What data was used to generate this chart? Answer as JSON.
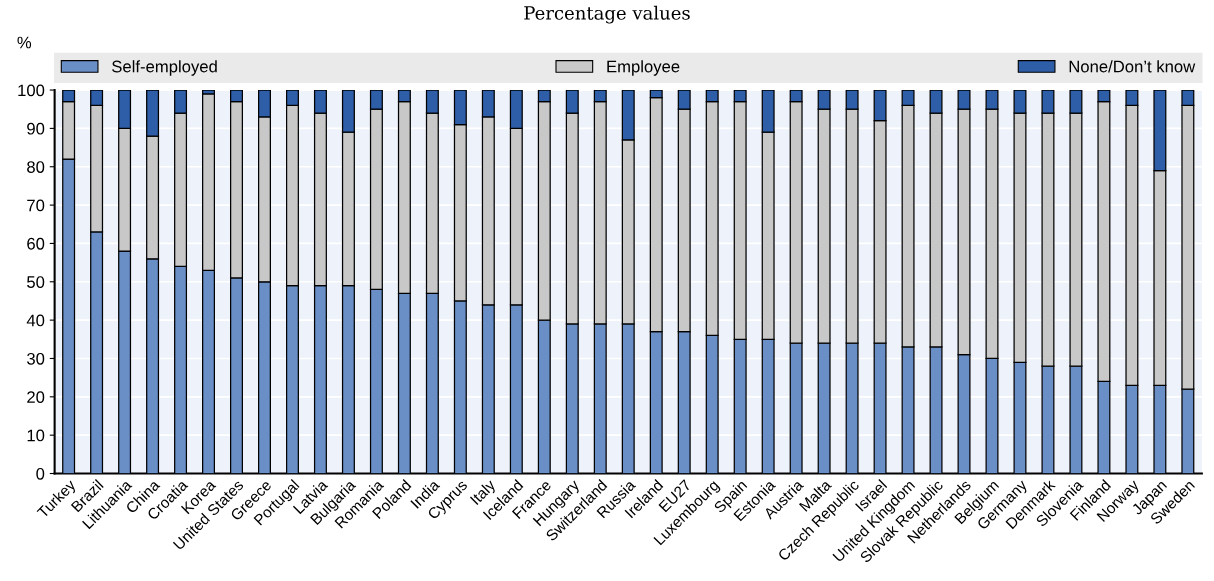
{
  "chart_data": {
    "type": "bar",
    "stacked": true,
    "subtitle": "Percentage values",
    "ylabel": "%",
    "categories": [
      "Turkey",
      "Brazil",
      "Lithuania",
      "China",
      "Croatia",
      "Korea",
      "United States",
      "Greece",
      "Portugal",
      "Latvia",
      "Bulgaria",
      "Romania",
      "Poland",
      "India",
      "Cyprus",
      "Italy",
      "Iceland",
      "France",
      "Hungary",
      "Switzerland",
      "Russia",
      "Ireland",
      "EU27",
      "Luxembourg",
      "Spain",
      "Estonia",
      "Austria",
      "Malta",
      "Czech Republic",
      "Israel",
      "United Kingdom",
      "Slovak Republic",
      "Netherlands",
      "Belgium",
      "Germany",
      "Denmark",
      "Slovenia",
      "Finland",
      "Norway",
      "Japan",
      "Sweden"
    ],
    "series": [
      {
        "name": "Self-employed",
        "color": "#6a8fc7",
        "values": [
          82,
          63,
          58,
          56,
          54,
          53,
          51,
          50,
          49,
          49,
          49,
          48,
          47,
          47,
          45,
          44,
          44,
          40,
          39,
          39,
          39,
          37,
          37,
          36,
          35,
          35,
          34,
          34,
          34,
          34,
          33,
          33,
          31,
          30,
          29,
          28,
          28,
          24,
          23,
          23,
          22
        ]
      },
      {
        "name": "Employee",
        "color": "#c8c8c8",
        "values": [
          15,
          33,
          32,
          32,
          40,
          46,
          46,
          43,
          47,
          45,
          40,
          47,
          50,
          47,
          46,
          49,
          46,
          57,
          55,
          58,
          48,
          61,
          58,
          61,
          62,
          54,
          63,
          61,
          61,
          58,
          63,
          61,
          64,
          65,
          65,
          66,
          66,
          73,
          73,
          56,
          74
        ]
      },
      {
        "name": "None/Don’t know",
        "color": "#2f5ea8",
        "values": [
          3,
          4,
          10,
          12,
          6,
          1,
          3,
          7,
          4,
          6,
          11,
          5,
          3,
          6,
          9,
          7,
          10,
          3,
          6,
          3,
          13,
          2,
          5,
          3,
          3,
          11,
          3,
          5,
          5,
          8,
          4,
          6,
          5,
          5,
          6,
          6,
          6,
          3,
          4,
          21,
          4
        ]
      }
    ],
    "ylim": [
      0,
      100
    ],
    "yticks": [
      0,
      10,
      20,
      30,
      40,
      50,
      60,
      70,
      80,
      90,
      100
    ],
    "grid": "y",
    "legend": "top"
  }
}
